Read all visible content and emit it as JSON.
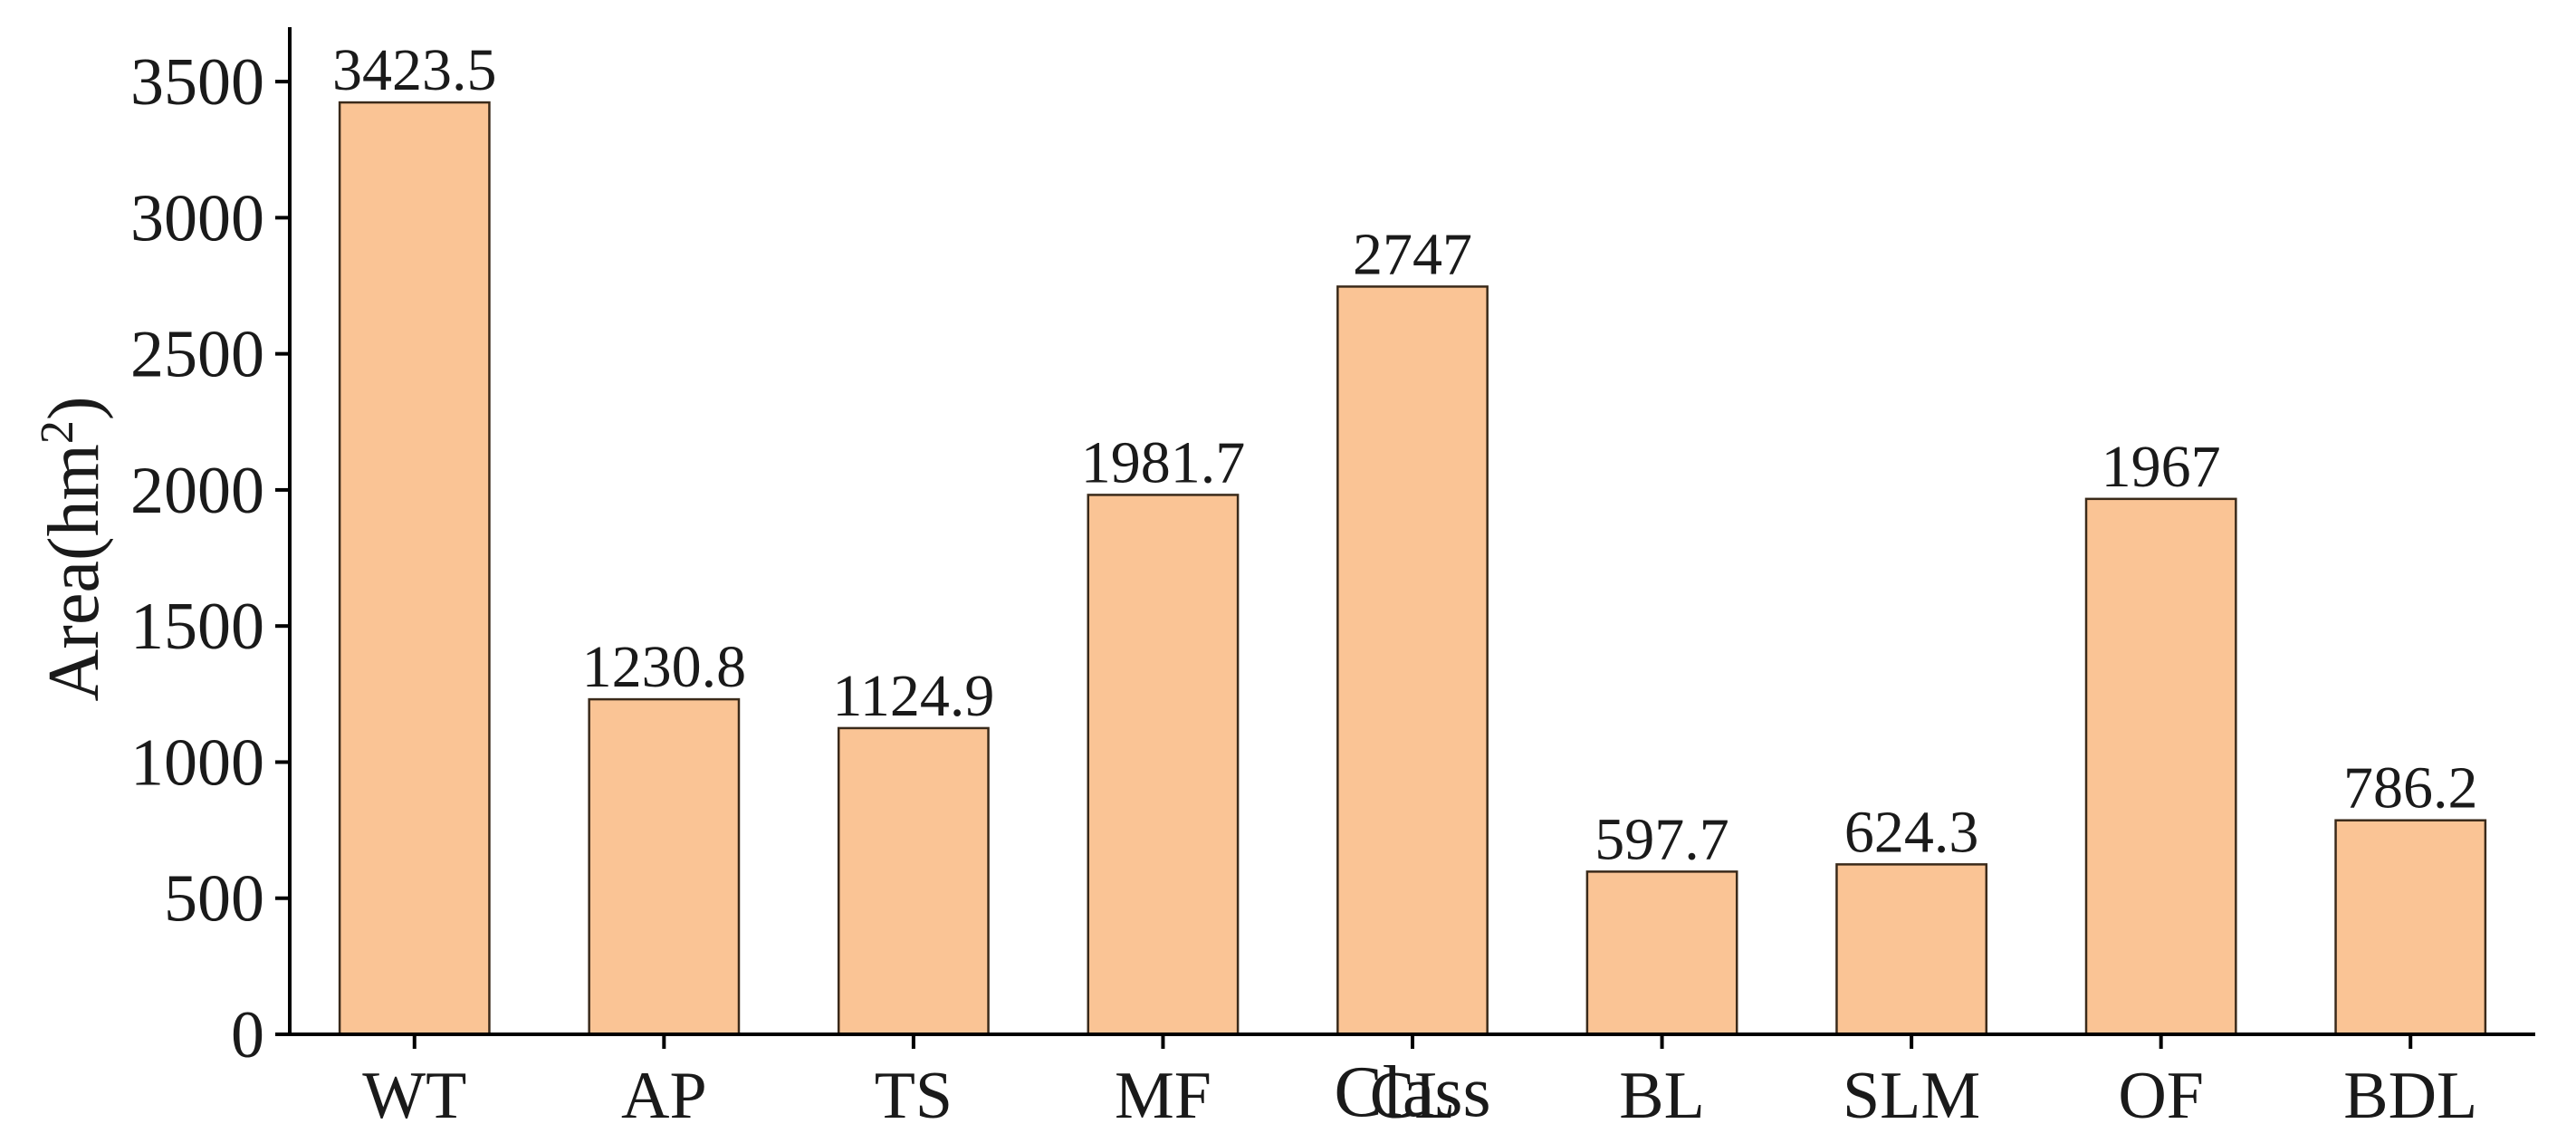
{
  "chart_data": {
    "type": "bar",
    "categories": [
      "WT",
      "AP",
      "TS",
      "MF",
      "CL",
      "BL",
      "SLM",
      "OF",
      "BDL"
    ],
    "values": [
      3423.5,
      1230.8,
      1124.9,
      1981.7,
      2747,
      597.7,
      624.3,
      1967,
      786.2
    ],
    "value_labels": [
      "3423.5",
      "1230.8",
      "1124.9",
      "1981.7",
      "2747",
      "597.7",
      "624.3",
      "1967",
      "786.2"
    ],
    "xlabel": "Class",
    "ylabel": "Area(hm",
    "ylabel_superscript": "2",
    "ylabel_suffix": ")",
    "ylim": [
      0,
      3700
    ],
    "yticks": [
      0,
      500,
      1000,
      1500,
      2000,
      2500,
      3000,
      3500
    ],
    "ytick_labels": [
      "0",
      "500",
      "1000",
      "1500",
      "2000",
      "2500",
      "3000",
      "3500"
    ],
    "grid": false,
    "legend": "none",
    "bar_color": "#fac495",
    "bar_edge_color": "#3a2a1a"
  }
}
